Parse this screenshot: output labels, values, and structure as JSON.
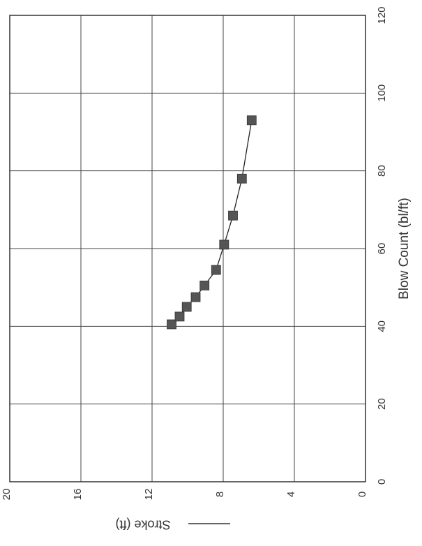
{
  "chart_data": {
    "type": "line",
    "orientation": "rotated-90-counterclockwise",
    "xlabel": "Blow Count (bl/ft)",
    "ylabel": "",
    "xlim": [
      0,
      120
    ],
    "ylim": [
      0,
      20
    ],
    "x_ticks": [
      "0",
      "20",
      "40",
      "60",
      "80",
      "100",
      "120"
    ],
    "y_ticks": [
      "0",
      "4",
      "8",
      "12",
      "16",
      "20"
    ],
    "grid": true,
    "legend": {
      "placement": "bottom-left",
      "entries": [
        "Stroke (ft)"
      ]
    },
    "marker": "square",
    "series": [
      {
        "name": "Stroke (ft)",
        "color": "#555555",
        "marker_color": "#555555",
        "x": [
          40.5,
          42.5,
          45,
          47.5,
          50.5,
          54.5,
          61,
          68.5,
          78,
          93
        ],
        "y": [
          10.9,
          10.45,
          10.05,
          9.55,
          9.05,
          8.4,
          7.95,
          7.45,
          6.95,
          6.4
        ]
      }
    ]
  }
}
